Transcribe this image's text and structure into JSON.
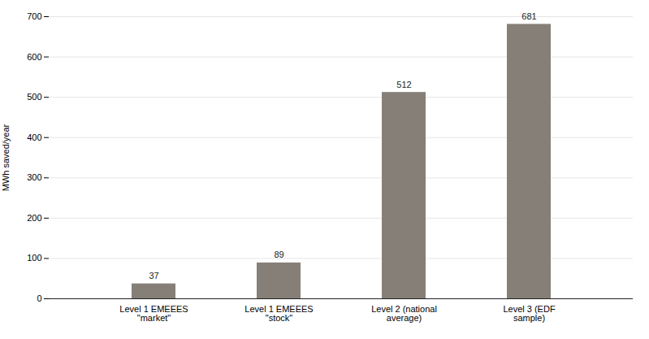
{
  "chart_data": {
    "type": "bar",
    "categories": [
      "Level 1 EMEEES\n\"market\"",
      "Level 1 EMEEES\n\"stock\"",
      "Level 2 (national\naverage)",
      "Level 3 (EDF\nsample)"
    ],
    "values": [
      37,
      89,
      512,
      681
    ],
    "color": "#857f77",
    "ylabel": "MWh saved/year",
    "ylim": [
      0,
      700
    ],
    "yticks": [
      0,
      100,
      200,
      300,
      400,
      500,
      600,
      700
    ],
    "grid": true,
    "data_labels": true
  }
}
